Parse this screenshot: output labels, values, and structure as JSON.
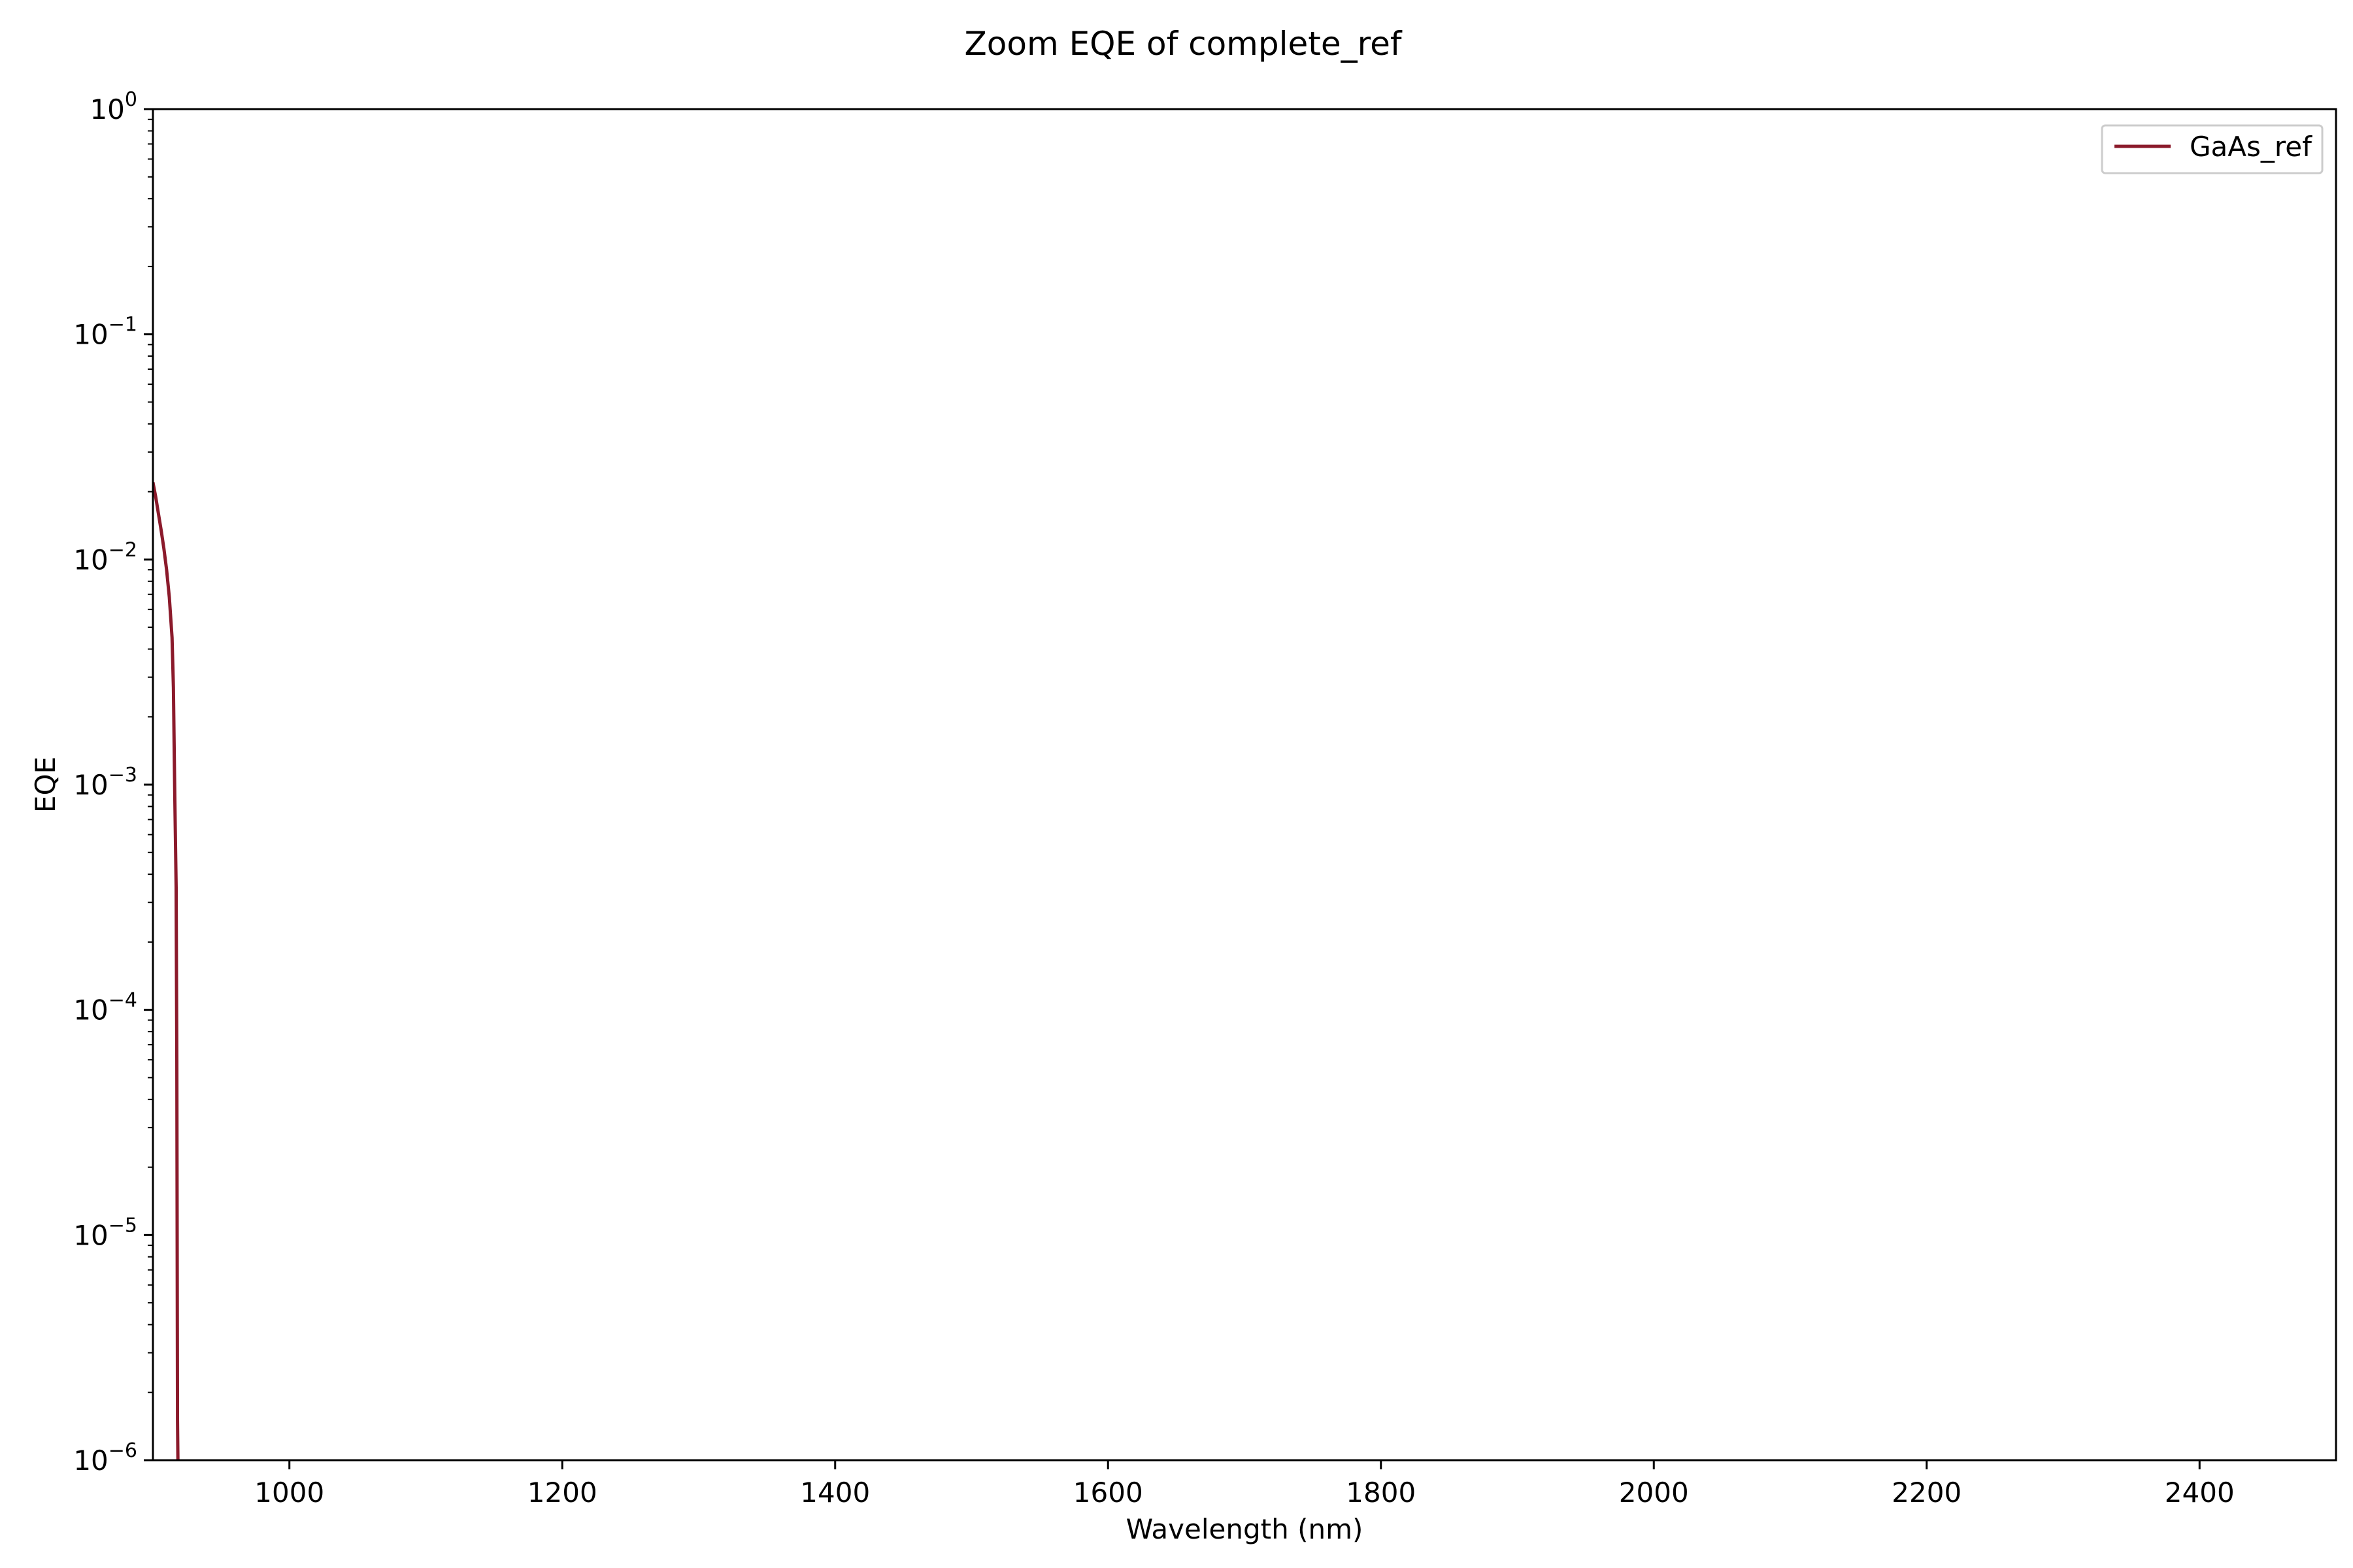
{
  "chart_data": {
    "type": "line",
    "title": "Zoom EQE of complete_ref",
    "xlabel": "Wavelength (nm)",
    "ylabel": "EQE",
    "xlim": [
      900,
      2500
    ],
    "ylim": [
      1e-06,
      1
    ],
    "yscale": "log",
    "grid": false,
    "legend_position": "upper right",
    "x_ticks": [
      {
        "value": 1000,
        "label": "1000"
      },
      {
        "value": 1200,
        "label": "1200"
      },
      {
        "value": 1400,
        "label": "1400"
      },
      {
        "value": 1600,
        "label": "1600"
      },
      {
        "value": 1800,
        "label": "1800"
      },
      {
        "value": 2000,
        "label": "2000"
      },
      {
        "value": 2200,
        "label": "2200"
      },
      {
        "value": 2400,
        "label": "2400"
      }
    ],
    "y_ticks": [
      {
        "value": 1,
        "base": "10",
        "exp": "0"
      },
      {
        "value": 0.1,
        "base": "10",
        "exp": "−1"
      },
      {
        "value": 0.01,
        "base": "10",
        "exp": "−2"
      },
      {
        "value": 0.001,
        "base": "10",
        "exp": "−3"
      },
      {
        "value": 0.0001,
        "base": "10",
        "exp": "−4"
      },
      {
        "value": 1e-05,
        "base": "10",
        "exp": "−5"
      },
      {
        "value": 1e-06,
        "base": "10",
        "exp": "−6"
      }
    ],
    "series": [
      {
        "name": "GaAs_ref",
        "color": "#8b1a2b",
        "x": [
          900,
          902,
          904,
          906,
          908,
          910,
          912,
          914,
          915,
          916,
          917,
          917.5,
          918,
          918.5,
          919,
          919.5,
          920,
          920.5,
          921,
          922,
          924,
          930
        ],
        "y": [
          0.022,
          0.019,
          0.016,
          0.0135,
          0.0112,
          0.009,
          0.0068,
          0.0045,
          0.0027,
          0.0009,
          0.00035,
          6e-05,
          1.5e-06,
          0,
          0,
          0,
          0,
          0,
          0,
          0,
          0,
          0
        ]
      }
    ]
  }
}
